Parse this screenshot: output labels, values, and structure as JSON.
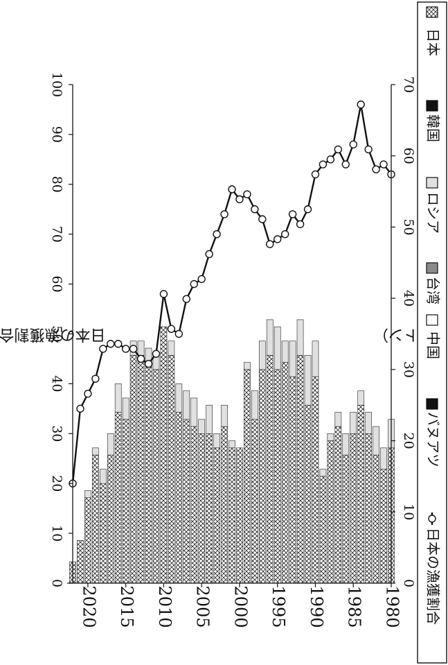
{
  "chart_data": {
    "type": "bar",
    "orientation": "rotated-180",
    "left_axis_label": "漁獲量（万トン）",
    "right_axis_label": "日本の漁獲割合（%）",
    "left_ylim": [
      0,
      70
    ],
    "right_ylim": [
      0,
      100
    ],
    "left_ticks": [
      "0",
      "10",
      "20",
      "30",
      "40",
      "50",
      "60",
      "70"
    ],
    "right_ticks": [
      "0",
      "10",
      "20",
      "30",
      "40",
      "50",
      "60",
      "70",
      "80",
      "90",
      "100"
    ],
    "x_ticks": [
      {
        "year": 1980,
        "label": "1980"
      },
      {
        "year": 1985,
        "label": "1985"
      },
      {
        "year": 1990,
        "label": "1990"
      },
      {
        "year": 1995,
        "label": "1995"
      },
      {
        "year": 2000,
        "label": "2000"
      },
      {
        "year": 2005,
        "label": "2005"
      },
      {
        "year": 2010,
        "label": "2010"
      },
      {
        "year": 2015,
        "label": "2015"
      },
      {
        "year": 2020,
        "label": "2020"
      }
    ],
    "categories": [
      1980,
      1981,
      1982,
      1983,
      1984,
      1985,
      1986,
      1987,
      1988,
      1989,
      1990,
      1991,
      1992,
      1993,
      1994,
      1995,
      1996,
      1997,
      1998,
      1999,
      2000,
      2001,
      2002,
      2003,
      2004,
      2005,
      2006,
      2007,
      2008,
      2009,
      2010,
      2011,
      2012,
      2013,
      2014,
      2015,
      2016,
      2017,
      2018,
      2019,
      2020,
      2021,
      2022
    ],
    "series": [
      {
        "name": "日本",
        "pattern": "crosshatch",
        "values": [
          19,
          16,
          18,
          21,
          25,
          21,
          18,
          22,
          20,
          15,
          29,
          25,
          32,
          29,
          31,
          30,
          32,
          30,
          23,
          30,
          19,
          19,
          22,
          19,
          21,
          21,
          22,
          23,
          24,
          32,
          36,
          30,
          31,
          32,
          32,
          23,
          24,
          18,
          14,
          18,
          12,
          6,
          3
        ]
      },
      {
        "name": "韓国",
        "pattern": "black",
        "values": [
          0,
          0,
          0,
          0,
          0,
          0,
          0,
          0,
          0,
          0,
          0,
          0,
          0,
          0,
          0,
          0,
          0,
          0,
          0,
          0,
          0,
          0,
          0,
          0,
          0,
          0,
          0,
          0,
          0,
          0,
          0,
          0,
          0,
          0,
          0,
          0,
          0,
          0,
          0,
          0,
          0,
          0,
          0
        ]
      },
      {
        "name": "ロシア",
        "pattern": "light-grey",
        "values": [
          4,
          3,
          4,
          3,
          2,
          3,
          3,
          2,
          1,
          1,
          5,
          7,
          5,
          5,
          3,
          6,
          5,
          4,
          4,
          1,
          0,
          1,
          3,
          2,
          4,
          2,
          4,
          4,
          4,
          2,
          0,
          2,
          2,
          2,
          2,
          3,
          4,
          3,
          2,
          1,
          1,
          0,
          0
        ]
      },
      {
        "name": "台湾",
        "pattern": "dark-grey",
        "values": [
          0,
          0,
          0,
          0,
          0,
          0,
          0,
          0,
          0,
          0,
          0,
          0,
          0,
          0,
          0,
          0,
          0,
          0,
          0,
          0,
          0,
          0,
          0,
          0,
          0,
          0,
          0,
          0,
          0,
          0,
          0,
          0,
          0,
          0,
          0,
          0,
          0,
          0,
          0,
          0,
          0,
          0,
          0
        ]
      },
      {
        "name": "中国",
        "pattern": "white",
        "values": [
          0,
          0,
          0,
          0,
          0,
          0,
          0,
          0,
          0,
          0,
          0,
          0,
          0,
          0,
          0,
          0,
          0,
          0,
          0,
          0,
          0,
          0,
          0,
          0,
          0,
          0,
          0,
          0,
          0,
          0,
          0,
          0,
          0,
          0,
          0,
          0,
          0,
          0,
          0,
          0,
          0,
          0,
          0
        ]
      },
      {
        "name": "バヌアツ",
        "pattern": "black",
        "values": [
          0,
          0,
          0,
          0,
          0,
          0,
          0,
          0,
          0,
          0,
          0,
          0,
          0,
          0,
          0,
          0,
          0,
          0,
          0,
          0,
          0,
          0,
          0,
          0,
          0,
          0,
          0,
          0,
          0,
          0,
          0,
          0,
          0,
          0,
          0,
          0,
          0,
          0,
          0,
          0,
          0,
          0,
          0
        ]
      },
      {
        "name": "日本の漁獲割合",
        "type": "line",
        "axis": "right",
        "values": [
          82,
          84,
          83,
          87,
          96,
          88,
          84,
          87,
          85,
          84,
          82,
          75,
          72,
          74,
          70,
          69,
          68,
          73,
          75,
          78,
          77,
          79,
          74,
          70,
          66,
          61,
          60,
          57,
          50,
          51,
          58,
          46,
          44,
          45,
          47,
          47,
          48,
          48,
          47,
          41,
          38,
          35,
          20
        ]
      }
    ]
  }
}
